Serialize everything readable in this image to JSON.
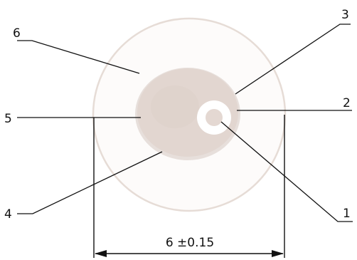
{
  "diagram": {
    "callouts": {
      "c1": "1",
      "c2": "2",
      "c3": "3",
      "c4": "4",
      "c5": "5",
      "c6": "6"
    },
    "dimension": {
      "label": "6 ±0.15"
    }
  },
  "colors": {
    "outer_sheath_stroke": "#e6dcd6",
    "outer_sheath_fill": "#fdfbfa",
    "core_fill": "#e2d6d0",
    "core_shadow": "#d6c8c1",
    "conductor_ring": "#ffffff",
    "conductor_center": "#e4d8d2",
    "line": "#111111"
  }
}
